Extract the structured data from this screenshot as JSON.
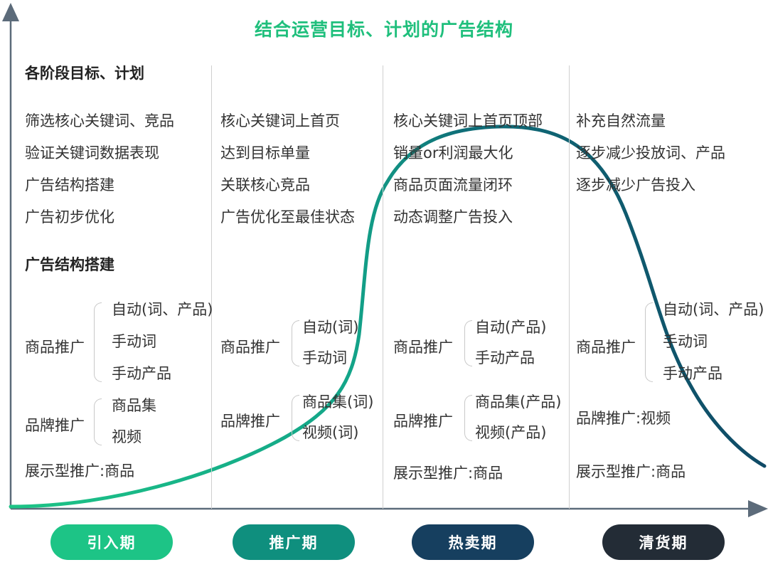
{
  "title": "结合运营目标、计划的广告结构",
  "colors": {
    "title": "#1fbf7c",
    "curve_start": "#1dc486",
    "curve_end": "#0f4a66",
    "axis": "#5c6b7a"
  },
  "columns": [
    {
      "goals_heading": "各阶段目标、计划",
      "goals": [
        "筛选核心关键词、竞品",
        "验证关键词数据表现",
        "广告结构搭建",
        "广告初步优化"
      ],
      "structure_heading": "广告结构搭建",
      "product_ads": {
        "label": "商品推广",
        "items": [
          "自动(词、产品)",
          "手动词",
          "手动产品"
        ]
      },
      "brand_ads": {
        "label": "品牌推广",
        "items": [
          "商品集",
          "视频"
        ]
      },
      "display_ads": "展示型推广:商品"
    },
    {
      "goals": [
        "核心关键词上首页",
        "达到目标单量",
        "关联核心竞品",
        "广告优化至最佳状态"
      ],
      "product_ads": {
        "label": "商品推广",
        "items": [
          "自动(词)",
          "手动词"
        ]
      },
      "brand_ads": {
        "label": "品牌推广",
        "items": [
          "商品集(词)",
          "视频(词)"
        ]
      }
    },
    {
      "goals": [
        "核心关键词上首页顶部",
        "销量or利润最大化",
        "商品页面流量闭环",
        "动态调整广告投入"
      ],
      "product_ads": {
        "label": "商品推广",
        "items": [
          "自动(产品)",
          "手动产品"
        ]
      },
      "brand_ads": {
        "label": "品牌推广",
        "items": [
          "商品集(产品)",
          "视频(产品)"
        ]
      },
      "display_ads": "展示型推广:商品"
    },
    {
      "goals": [
        "补充自然流量",
        "逐步减少投放词、产品",
        "逐步减少广告投入"
      ],
      "product_ads": {
        "label": "商品推广",
        "items": [
          "自动(词、产品)",
          "手动词",
          "手动产品"
        ]
      },
      "brand_ads_text": "品牌推广:视频",
      "display_ads": "展示型推广:商品"
    }
  ],
  "stages": [
    {
      "label": "引入期",
      "color": "#1dc486"
    },
    {
      "label": "推广期",
      "color": "#0f8f7e"
    },
    {
      "label": "热卖期",
      "color": "#163f5f"
    },
    {
      "label": "清货期",
      "color": "#232c36"
    }
  ]
}
